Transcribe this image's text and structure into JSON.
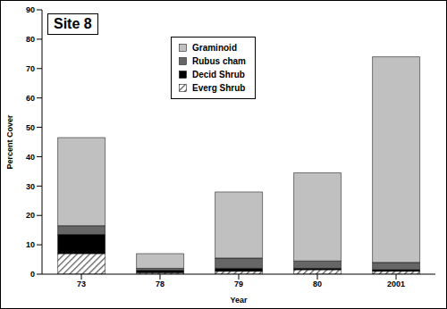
{
  "chart_data": {
    "type": "bar",
    "title": "Site 8",
    "x_label": "Year",
    "y_label": "Percent Cover",
    "categories": [
      "73",
      "78",
      "79",
      "80",
      "2001"
    ],
    "series": [
      {
        "name": "Graminoid",
        "color": "#c0c0c0",
        "values": [
          30,
          5,
          22.5,
          30,
          70
        ]
      },
      {
        "name": "Rubus cham",
        "color": "#666666",
        "values": [
          3,
          0.7,
          3.5,
          2.5,
          2.5
        ]
      },
      {
        "name": "Decid Shrub",
        "color": "#000000",
        "values": [
          6.5,
          0.8,
          1,
          0.5,
          0.5
        ]
      },
      {
        "name": "Everg Shrub",
        "color": "#555555",
        "marker": "hatch",
        "values": [
          7,
          0.5,
          1,
          1.5,
          1
        ]
      }
    ],
    "ylim": [
      0,
      90
    ],
    "yticks": [
      0,
      10,
      20,
      30,
      40,
      50,
      60,
      70,
      80,
      90
    ],
    "stacked": true,
    "grid": false,
    "legend": "top"
  }
}
